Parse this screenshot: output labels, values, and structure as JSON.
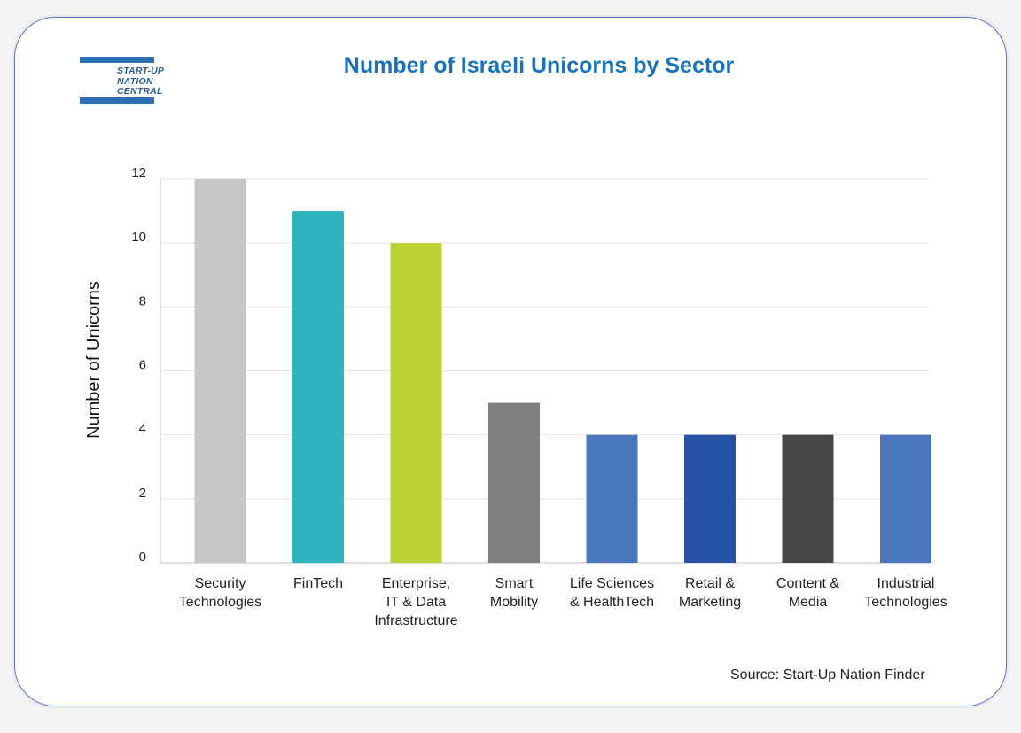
{
  "logo": {
    "lines": [
      "START-UP",
      "NATION",
      "CENTRAL"
    ]
  },
  "source": "Source: Start-Up Nation Finder",
  "chart_data": {
    "type": "bar",
    "title": "Number of Israeli Unicorns by Sector",
    "xlabel": "",
    "ylabel": "Number of Unicorns",
    "ylim": [
      0,
      12
    ],
    "yticks": [
      0,
      2,
      4,
      6,
      8,
      10,
      12
    ],
    "grid": true,
    "categories": [
      [
        "Security",
        "Technologies"
      ],
      [
        "FinTech"
      ],
      [
        "Enterprise,",
        "IT & Data",
        "Infrastructure"
      ],
      [
        "Smart",
        "Mobility"
      ],
      [
        "Life Sciences",
        "& HealthTech"
      ],
      [
        "Retail &",
        "Marketing"
      ],
      [
        "Content &",
        "Media"
      ],
      [
        "Industrial",
        "Technologies"
      ]
    ],
    "values": [
      12,
      11,
      10,
      5,
      4,
      4,
      4,
      4
    ],
    "colors": [
      "#c6c7c9",
      "#2cb3bd",
      "#bcd033",
      "#7e7f80",
      "#4a76bd",
      "#2753a6",
      "#474748",
      "#4a76bd"
    ]
  }
}
